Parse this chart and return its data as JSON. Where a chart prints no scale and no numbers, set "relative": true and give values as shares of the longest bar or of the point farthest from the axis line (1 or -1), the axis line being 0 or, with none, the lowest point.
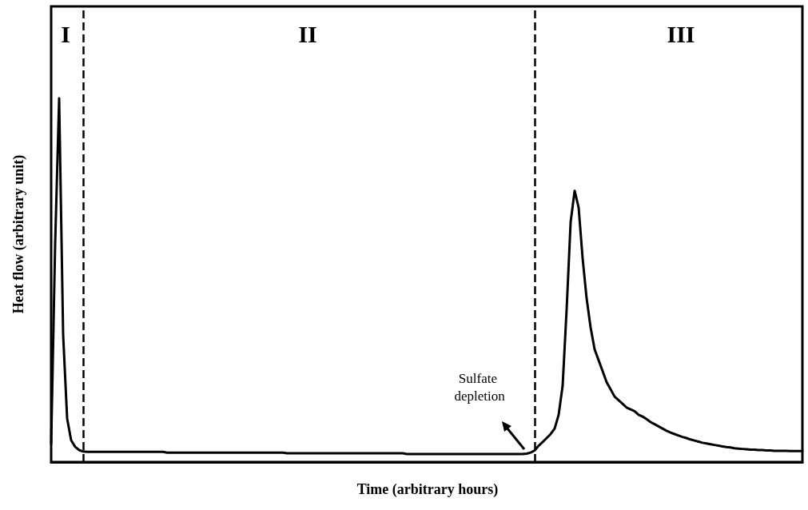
{
  "chart_data": {
    "type": "line",
    "relative": true,
    "xlabel": "Time (arbitrary hours)",
    "ylabel": "Heat flow (arbitrary unit)",
    "line_style": "solid",
    "categories": [
      null,
      null,
      null,
      null,
      null,
      null,
      null,
      null,
      null,
      null,
      null,
      null,
      null,
      null,
      null,
      null,
      null,
      null,
      null,
      null,
      null,
      null,
      null,
      null,
      null,
      null,
      null,
      null,
      null,
      null,
      null,
      null,
      null,
      null,
      null,
      null,
      null,
      null,
      null,
      null,
      null,
      null,
      null,
      null,
      null,
      null,
      null,
      null,
      null,
      null,
      null,
      null,
      null,
      null,
      null,
      null,
      null,
      null,
      null,
      null,
      null,
      null,
      null,
      null,
      null,
      null,
      null,
      null,
      null,
      null,
      null,
      null,
      null,
      null,
      null,
      null,
      null,
      null,
      null,
      null,
      null,
      null,
      null,
      null,
      null,
      null,
      null,
      null,
      null,
      null,
      null,
      null,
      null,
      null,
      null,
      null,
      null,
      null,
      null,
      null,
      null,
      null,
      null,
      null,
      null,
      null,
      null,
      null,
      null,
      null,
      null,
      null,
      null,
      null,
      null,
      null,
      null,
      null,
      null,
      null,
      null,
      null,
      null,
      null,
      null,
      null,
      null,
      null,
      null,
      null,
      null,
      null,
      null,
      null,
      null,
      null,
      null,
      null,
      null,
      null,
      null,
      null,
      null,
      null,
      null,
      null,
      null,
      null,
      null,
      null,
      null,
      null,
      null,
      null,
      null,
      null,
      null,
      null,
      null,
      null,
      null,
      null,
      null,
      null,
      null,
      null,
      null,
      null,
      null,
      null,
      null,
      null,
      null,
      null,
      null,
      null,
      null,
      null,
      null,
      null,
      null,
      null,
      null,
      null,
      null,
      null,
      null,
      null,
      null
    ],
    "series": [
      {
        "color": "#000000",
        "values": [
          0.05,
          0.6,
          1,
          0.35,
          0.12,
          0.06,
          0.042,
          0.033,
          0.029,
          0.028,
          0.028,
          0.028,
          0.028,
          0.028,
          0.028,
          0.028,
          0.028,
          0.028,
          0.028,
          0.028,
          0.028,
          0.028,
          0.028,
          0.028,
          0.028,
          0.028,
          0.028,
          0.028,
          0.028,
          0.026,
          0.026,
          0.026,
          0.026,
          0.026,
          0.026,
          0.026,
          0.026,
          0.026,
          0.026,
          0.026,
          0.026,
          0.026,
          0.026,
          0.026,
          0.026,
          0.026,
          0.026,
          0.026,
          0.026,
          0.026,
          0.026,
          0.026,
          0.026,
          0.026,
          0.026,
          0.026,
          0.026,
          0.026,
          0.026,
          0.024,
          0.024,
          0.024,
          0.024,
          0.024,
          0.024,
          0.024,
          0.024,
          0.024,
          0.024,
          0.024,
          0.024,
          0.024,
          0.024,
          0.024,
          0.024,
          0.024,
          0.024,
          0.024,
          0.024,
          0.024,
          0.024,
          0.024,
          0.024,
          0.024,
          0.024,
          0.024,
          0.024,
          0.024,
          0.024,
          0.022,
          0.022,
          0.022,
          0.022,
          0.022,
          0.022,
          0.022,
          0.022,
          0.022,
          0.022,
          0.022,
          0.022,
          0.022,
          0.022,
          0.022,
          0.022,
          0.022,
          0.022,
          0.022,
          0.022,
          0.022,
          0.022,
          0.022,
          0.022,
          0.022,
          0.022,
          0.022,
          0.022,
          0.022,
          0.022,
          0.023,
          0.026,
          0.032,
          0.045,
          0.055,
          0.066,
          0.077,
          0.092,
          0.13,
          0.21,
          0.42,
          0.66,
          0.746,
          0.7,
          0.56,
          0.45,
          0.37,
          0.31,
          0.28,
          0.25,
          0.22,
          0.2,
          0.18,
          0.17,
          0.16,
          0.15,
          0.145,
          0.14,
          0.13,
          0.125,
          0.118,
          0.11,
          0.104,
          0.098,
          0.092,
          0.086,
          0.081,
          0.077,
          0.073,
          0.069,
          0.066,
          0.062,
          0.059,
          0.056,
          0.053,
          0.051,
          0.049,
          0.047,
          0.045,
          0.043,
          0.041,
          0.04,
          0.038,
          0.037,
          0.036,
          0.035,
          0.034,
          0.034,
          0.033,
          0.033,
          0.032,
          0.032,
          0.031,
          0.031,
          0.031,
          0.031,
          0.03,
          0.03,
          0.03,
          0.03
        ]
      }
    ],
    "annotations": [
      "I",
      "II",
      "III",
      "Sulfate depletion"
    ]
  }
}
